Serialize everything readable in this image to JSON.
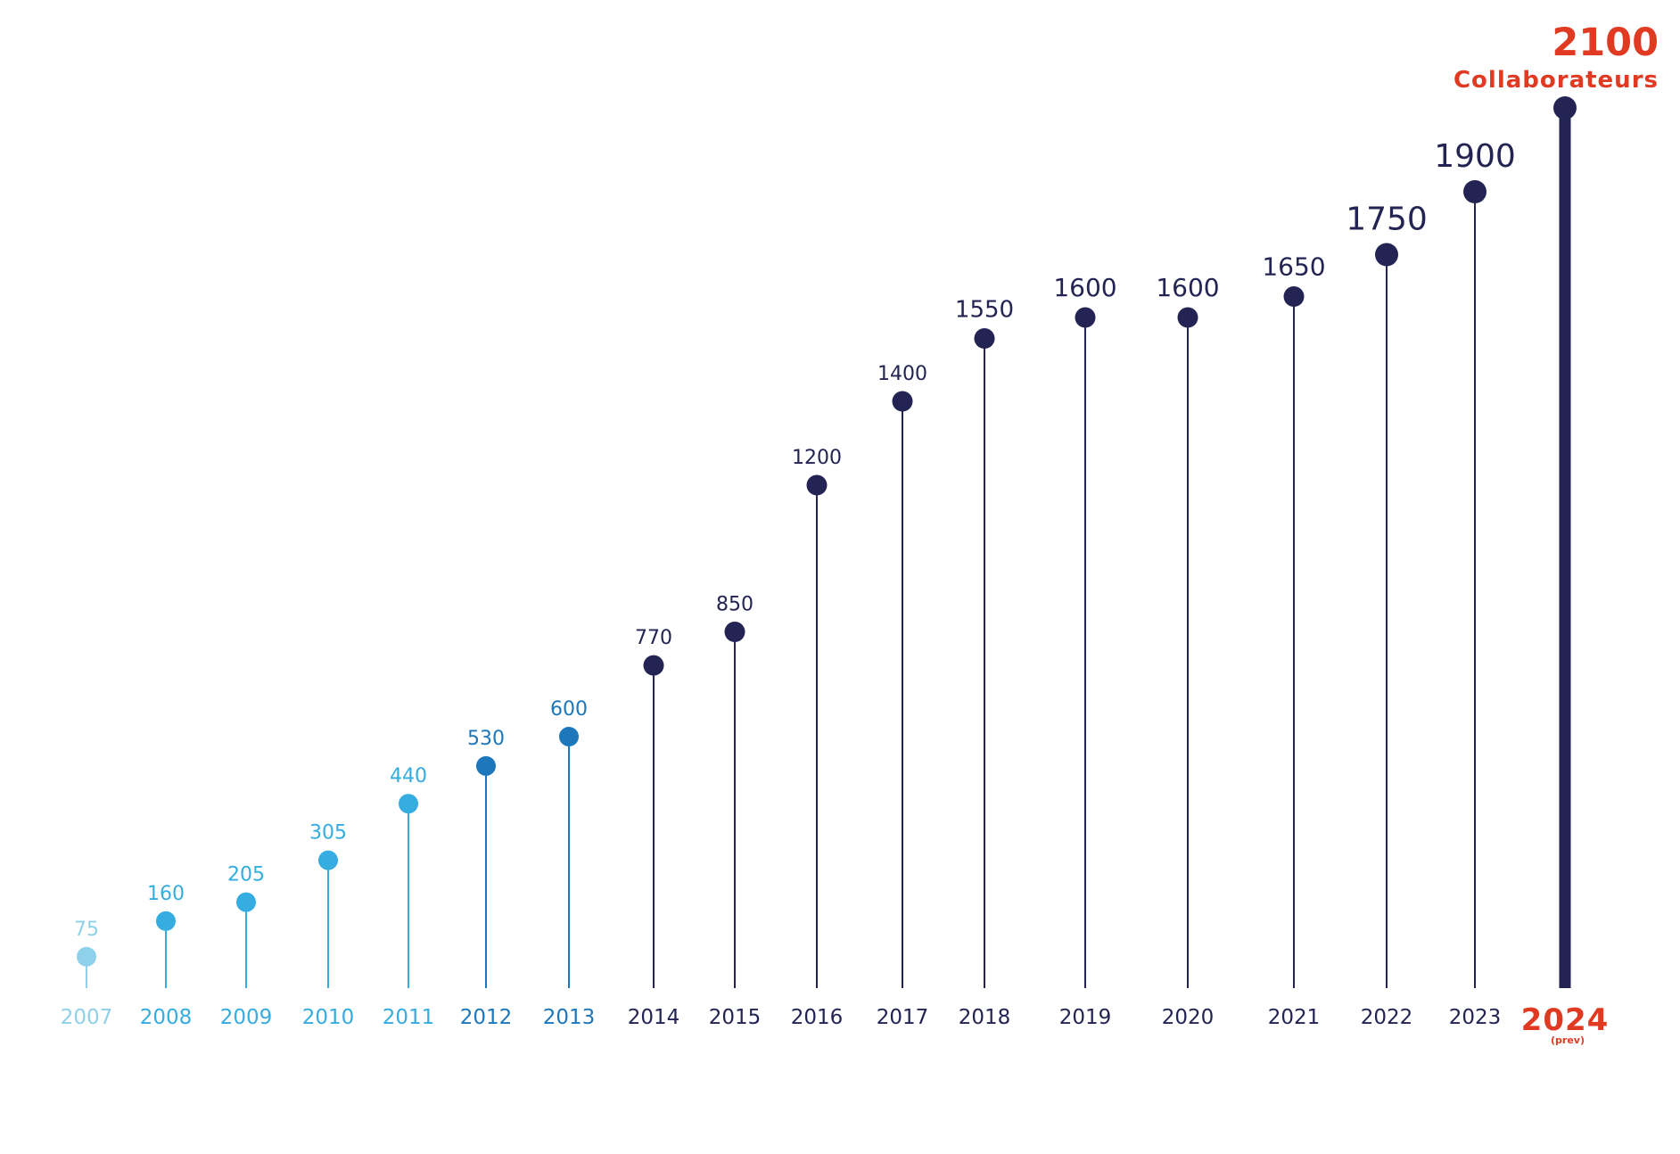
{
  "chart_data": {
    "type": "lollipop",
    "categories": [
      "2007",
      "2008",
      "2009",
      "2010",
      "2011",
      "2012",
      "2013",
      "2014",
      "2015",
      "2016",
      "2017",
      "2018",
      "2019",
      "2020",
      "2021",
      "2022",
      "2023",
      "2024"
    ],
    "values": [
      75,
      160,
      205,
      305,
      440,
      530,
      600,
      770,
      850,
      1200,
      1400,
      1550,
      1600,
      1600,
      1650,
      1750,
      1900,
      2100
    ],
    "value_labels": [
      "75",
      "160",
      "205",
      "305",
      "440",
      "530",
      "600",
      "770",
      "850",
      "1200",
      "1400",
      "1550",
      "1600",
      "1600",
      "1650",
      "1750",
      "1900",
      "2100"
    ],
    "highlight": {
      "category": "2024",
      "category_note": "(prev)",
      "value_label": "2100",
      "unit_label": "Collaborateurs"
    },
    "ylim": [
      0,
      2100
    ],
    "grid": false,
    "legend": "none",
    "colors": {
      "light_cyan": "#8fd0ea",
      "cyan": "#35ade0",
      "blue": "#1c77bb",
      "navy": "#232453",
      "accent": "#e03a22"
    },
    "color_by_category": [
      "light_cyan",
      "cyan",
      "cyan",
      "cyan",
      "cyan",
      "blue",
      "blue",
      "navy",
      "navy",
      "navy",
      "navy",
      "navy",
      "navy",
      "navy",
      "navy",
      "navy",
      "navy",
      "navy"
    ]
  }
}
